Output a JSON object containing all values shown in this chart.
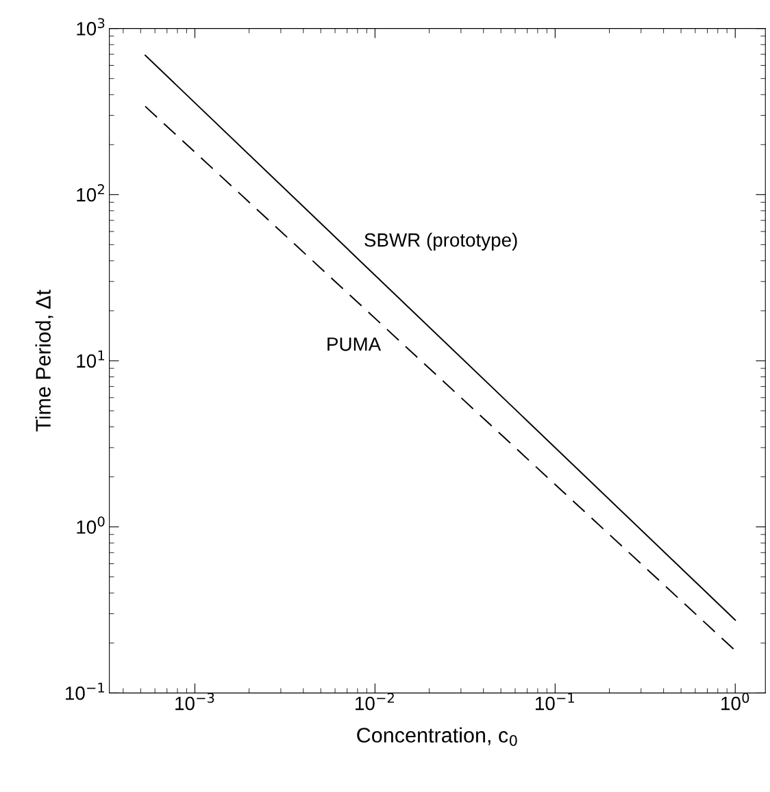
{
  "chart_data": {
    "type": "line",
    "xlabel": "Concentration, c$_{0}$",
    "ylabel": "Time Period, Δt",
    "log": "xy",
    "grid": false,
    "legend": false,
    "marker": "none",
    "xlim": [
      0.000335,
      1.47
    ],
    "ylim": [
      0.1,
      1000
    ],
    "xticks": [
      {
        "value": 0.001,
        "label": "10$^{−3}$"
      },
      {
        "value": 0.01,
        "label": "10$^{−2}$"
      },
      {
        "value": 0.1,
        "label": "10$^{−1}$"
      },
      {
        "value": 1,
        "label": "10$^{0}$"
      }
    ],
    "yticks": [
      {
        "value": 0.1,
        "label": "10$^{−1}$"
      },
      {
        "value": 1,
        "label": "10$^{0}$"
      },
      {
        "value": 10,
        "label": "10$^{1}$"
      },
      {
        "value": 100,
        "label": "10$^{2}$"
      },
      {
        "value": 1000,
        "label": "10$^{3}$"
      }
    ],
    "x": [
      0.00053,
      1
    ],
    "series": [
      {
        "name": "SBWR (prototype)",
        "color": "#000000",
        "line_style": "solid",
        "values": [
          690,
          0.275
        ]
      },
      {
        "name": "PUMA",
        "color": "#000000",
        "line_style": "dashed",
        "values": [
          340,
          0.18
        ]
      }
    ]
  }
}
